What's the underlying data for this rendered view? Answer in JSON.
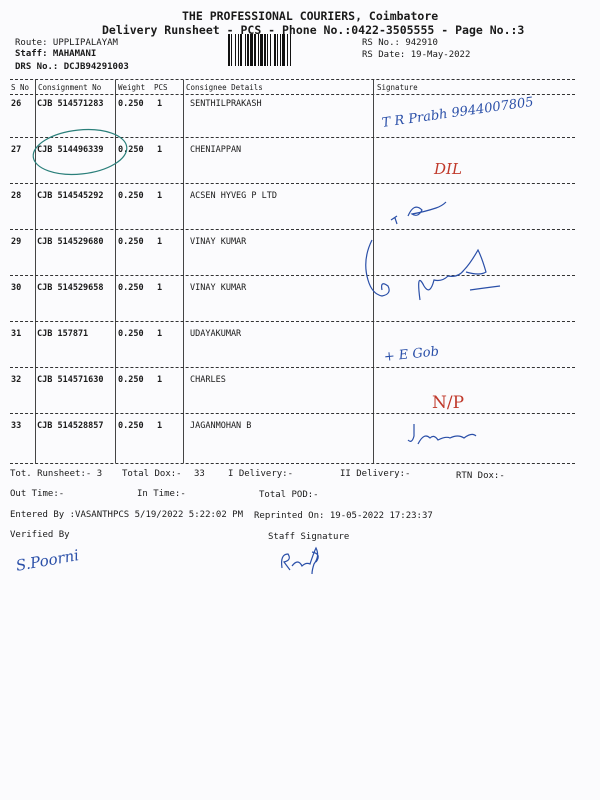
{
  "header": {
    "company": "THE PROFESSIONAL COURIERS, Coimbatore",
    "subtitle": "Delivery Runsheet - PCS - Phone No.:0422-3505555 - Page No.:3",
    "route": "Route: UPPLIPALAYAM",
    "staff": "Staff: MAHAMANI",
    "drs": "DRS No.: DCJB94291003",
    "rs_no": "RS No.: 942910",
    "rs_date": "RS Date: 19-May-2022"
  },
  "table": {
    "columns": [
      "S No",
      "Consignment No",
      "Weight",
      "PCS",
      "Consignee Details",
      "Signature"
    ],
    "rows": [
      {
        "sno": "26",
        "consignment": "CJB 514571283",
        "weight": "0.250",
        "pcs": "1",
        "consignee": "SENTHILPRAKASH"
      },
      {
        "sno": "27",
        "consignment": "CJB 514496339",
        "weight": "0.250",
        "pcs": "1",
        "consignee": "CHENIAPPAN"
      },
      {
        "sno": "28",
        "consignment": "CJB 514545292",
        "weight": "0.250",
        "pcs": "1",
        "consignee": "ACSEN HYVEG P LTD"
      },
      {
        "sno": "29",
        "consignment": "CJB 514529680",
        "weight": "0.250",
        "pcs": "1",
        "consignee": "VINAY KUMAR"
      },
      {
        "sno": "30",
        "consignment": "CJB 514529658",
        "weight": "0.250",
        "pcs": "1",
        "consignee": "VINAY KUMAR"
      },
      {
        "sno": "31",
        "consignment": "CJB 157871",
        "weight": "0.250",
        "pcs": "1",
        "consignee": "UDAYAKUMAR"
      },
      {
        "sno": "32",
        "consignment": "CJB 514571630",
        "weight": "0.250",
        "pcs": "1",
        "consignee": "CHARLES"
      },
      {
        "sno": "33",
        "consignment": "CJB 514528857",
        "weight": "0.250",
        "pcs": "1",
        "consignee": "JAGANMOHAN B"
      }
    ]
  },
  "footer": {
    "tot_runsheet": "Tot. Runsheet:- 3",
    "total_dox": "Total Dox:-",
    "total_dox_value": "33",
    "i_delivery": "I Delivery:-",
    "ii_delivery": "II Delivery:-",
    "rtn_dox": "RTN Dox:-",
    "out_time": "Out Time:-",
    "in_time": "In Time:-",
    "total_pod": "Total POD:-",
    "entered_by": "Entered By :VASANTHPCS 5/19/2022 5:22:02 PM",
    "reprinted_on": "Reprinted On: 19-05-2022 17:23:37",
    "verified_by": "Verified By",
    "staff_signature": "Staff Signature"
  },
  "handwriting": {
    "row26": "T R Prabh 9944007805",
    "row27": "DIL",
    "row31": "+ E Gob",
    "row32": "N/P",
    "row33": "Jaganmohan",
    "verifier": "S.Poorni"
  },
  "colors": {
    "ink_blue": "#2a4fa8",
    "ink_red": "#c0392b",
    "circle_teal": "#2a7f7a"
  }
}
